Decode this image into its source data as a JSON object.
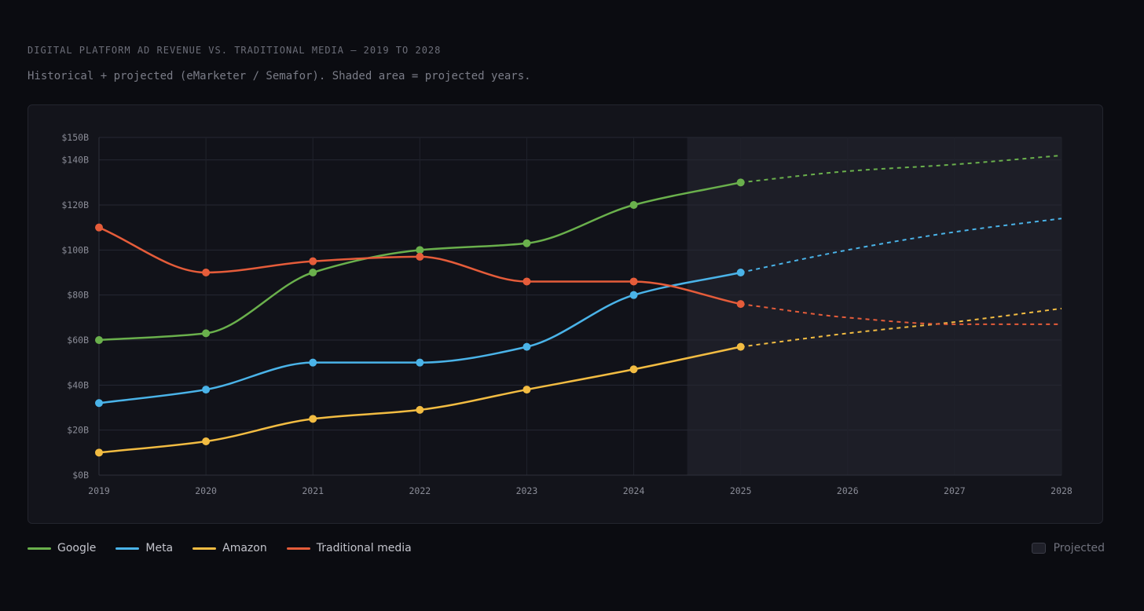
{
  "header": {
    "title": "DIGITAL PLATFORM AD REVENUE VS. TRADITIONAL MEDIA — 2019 TO 2028",
    "subtitle": "Historical + projected (eMarketer / Semafor). Shaded area = projected years."
  },
  "legend": {
    "projected_label": "Projected"
  },
  "chart_data": {
    "type": "line",
    "title": "DIGITAL PLATFORM AD REVENUE VS. TRADITIONAL MEDIA — 2019 TO 2028",
    "subtitle": "Historical + projected (eMarketer / Semafor). Shaded area = projected years.",
    "x": [
      "2019",
      "2020",
      "2021",
      "2022",
      "2023",
      "2024",
      "2025",
      "2026",
      "2027",
      "2028"
    ],
    "ylim": [
      0,
      150
    ],
    "yticks": [
      0,
      20,
      40,
      60,
      80,
      100,
      120,
      140,
      150
    ],
    "ytick_labels": [
      "$0B",
      "$20B",
      "$40B",
      "$60B",
      "$80B",
      "$100B",
      "$120B",
      "$140B",
      "$150B"
    ],
    "grid": true,
    "projected_region_start": 2024.5,
    "actual_through": "2025",
    "legend_position": "bottom-left",
    "series": [
      {
        "name": "Google",
        "color": "#6ab04c",
        "values": [
          60,
          63,
          90,
          100,
          103,
          120,
          130,
          135,
          138,
          142
        ]
      },
      {
        "name": "Meta",
        "color": "#4ab3e8",
        "values": [
          32,
          38,
          50,
          50,
          57,
          80,
          90,
          100,
          108,
          114
        ]
      },
      {
        "name": "Amazon",
        "color": "#f2bc42",
        "values": [
          10,
          15,
          25,
          29,
          38,
          47,
          57,
          63,
          68,
          74
        ]
      },
      {
        "name": "Traditional media",
        "color": "#e55c3a",
        "values": [
          110,
          90,
          95,
          97,
          86,
          86,
          76,
          70,
          67,
          67
        ]
      }
    ]
  }
}
